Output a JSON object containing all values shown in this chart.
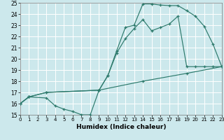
{
  "xlabel": "Humidex (Indice chaleur)",
  "bg_color": "#cce8ec",
  "grid_color": "#ffffff",
  "line_color": "#2d7a6c",
  "xlim": [
    0,
    23
  ],
  "ylim": [
    15,
    25
  ],
  "xticks": [
    0,
    1,
    2,
    3,
    4,
    5,
    6,
    7,
    8,
    9,
    10,
    11,
    12,
    13,
    14,
    15,
    16,
    17,
    18,
    19,
    20,
    21,
    22,
    23
  ],
  "yticks": [
    15,
    16,
    17,
    18,
    19,
    20,
    21,
    22,
    23,
    24,
    25
  ],
  "curve1_x": [
    0,
    1,
    3,
    4,
    5,
    6,
    7,
    8,
    9,
    10,
    11,
    12,
    13,
    14,
    15,
    16,
    17,
    18,
    19,
    20,
    21,
    22,
    23
  ],
  "curve1_y": [
    16.0,
    16.6,
    16.5,
    15.8,
    15.5,
    15.3,
    15.0,
    15.0,
    17.2,
    18.5,
    20.7,
    22.8,
    23.0,
    24.9,
    24.9,
    24.8,
    24.75,
    24.75,
    24.3,
    23.8,
    22.9,
    21.3,
    19.3
  ],
  "curve2_x": [
    0,
    1,
    3,
    9,
    10,
    11,
    12,
    13,
    14,
    15,
    16,
    17,
    18,
    19,
    20,
    21,
    22,
    23
  ],
  "curve2_y": [
    16.0,
    16.6,
    17.0,
    17.2,
    18.5,
    20.5,
    21.8,
    22.7,
    23.5,
    22.5,
    22.8,
    23.1,
    23.8,
    19.3,
    19.3,
    19.3,
    19.3,
    19.3
  ],
  "curve3_x": [
    0,
    1,
    3,
    9,
    14,
    19,
    23
  ],
  "curve3_y": [
    16.0,
    16.6,
    17.0,
    17.2,
    18.0,
    18.7,
    19.3
  ]
}
